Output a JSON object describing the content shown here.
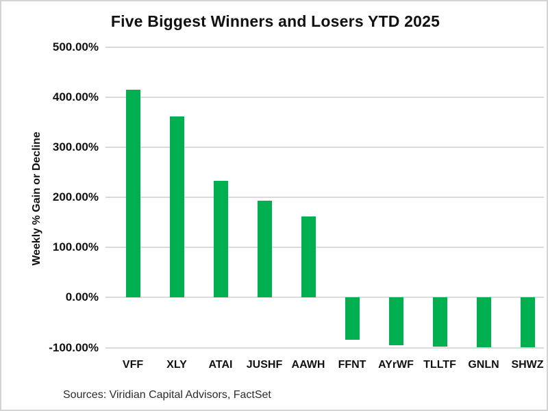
{
  "page": {
    "background_color": "#ffffff",
    "border_color": "#d4d4d4"
  },
  "chart_data": {
    "type": "bar",
    "title": "Five Biggest Winners and Losers YTD 2025",
    "xlabel": "",
    "ylabel": "Weekly % Gain or Decline",
    "categories": [
      "VFF",
      "XLY",
      "ATAI",
      "JUSHF",
      "AAWH",
      "FFNT",
      "AYrWF",
      "TLLTF",
      "GNLN",
      "SHWZ"
    ],
    "values": [
      415,
      362,
      233,
      193,
      162,
      -84,
      -95,
      -98,
      -100,
      -100
    ],
    "unit": "%",
    "ylim": [
      -100,
      500
    ],
    "y_ticks": [
      {
        "value": 500,
        "label": "500.00%"
      },
      {
        "value": 400,
        "label": "400.00%"
      },
      {
        "value": 300,
        "label": "300.00%"
      },
      {
        "value": 200,
        "label": "200.00%"
      },
      {
        "value": 100,
        "label": "100.00%"
      },
      {
        "value": 0,
        "label": "0.00%"
      },
      {
        "value": -100,
        "label": "-100.00%"
      }
    ],
    "grid": true,
    "legend_position": "none",
    "bar_color": "#00B050",
    "gridline_color": "#d9d9d9"
  },
  "footer": {
    "source_note": "Sources: Viridian Capital Advisors, FactSet"
  }
}
